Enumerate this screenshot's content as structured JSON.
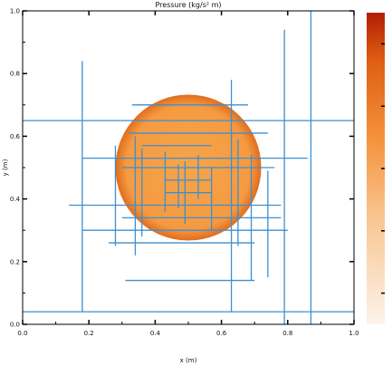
{
  "chart_data": {
    "type": "heatmap",
    "title": "Pressure (kg/s² m)",
    "xlabel": "x (m)",
    "ylabel": "y (m)",
    "xlim": [
      0,
      1
    ],
    "ylim": [
      0,
      1
    ],
    "x_ticks": [
      "0.0",
      "0.2",
      "0.4",
      "0.6",
      "0.8",
      "1.0"
    ],
    "y_ticks": [
      "0.0",
      "0.2",
      "0.4",
      "0.6",
      "0.8",
      "1.0"
    ],
    "circle": {
      "center": [
        0.5,
        0.5
      ],
      "radius": 0.22
    },
    "colormap": {
      "low": "#fdf3ea",
      "mid": "#f5913a",
      "high": "#b01e04",
      "inside_center": "#f5a54a",
      "inside_edge": "#e06d1e"
    },
    "mesh_color": "#3d8fd1",
    "mesh_lines": {
      "vertical": [
        {
          "x": 0.18,
          "y": [
            0.04,
            0.84
          ]
        },
        {
          "x": 0.28,
          "y": [
            0.25,
            0.57
          ]
        },
        {
          "x": 0.34,
          "y": [
            0.22,
            0.6
          ]
        },
        {
          "x": 0.36,
          "y": [
            0.28,
            0.56
          ]
        },
        {
          "x": 0.43,
          "y": [
            0.36,
            0.55
          ]
        },
        {
          "x": 0.47,
          "y": [
            0.37,
            0.51
          ]
        },
        {
          "x": 0.49,
          "y": [
            0.32,
            0.52
          ]
        },
        {
          "x": 0.53,
          "y": [
            0.4,
            0.54
          ]
        },
        {
          "x": 0.57,
          "y": [
            0.3,
            0.5
          ]
        },
        {
          "x": 0.63,
          "y": [
            0.04,
            0.78
          ]
        },
        {
          "x": 0.65,
          "y": [
            0.25,
            0.59
          ]
        },
        {
          "x": 0.69,
          "y": [
            0.14,
            0.54
          ]
        },
        {
          "x": 0.74,
          "y": [
            0.15,
            0.49
          ]
        },
        {
          "x": 0.79,
          "y": [
            0.0,
            0.94
          ]
        },
        {
          "x": 0.87,
          "y": [
            0.0,
            1.0
          ]
        }
      ],
      "horizontal": [
        {
          "y": 0.04,
          "x": [
            0.0,
            1.0
          ]
        },
        {
          "y": 0.14,
          "x": [
            0.31,
            0.7
          ]
        },
        {
          "y": 0.26,
          "x": [
            0.26,
            0.7
          ]
        },
        {
          "y": 0.3,
          "x": [
            0.18,
            0.8
          ]
        },
        {
          "y": 0.34,
          "x": [
            0.3,
            0.78
          ]
        },
        {
          "y": 0.38,
          "x": [
            0.14,
            0.78
          ]
        },
        {
          "y": 0.42,
          "x": [
            0.43,
            0.57
          ]
        },
        {
          "y": 0.46,
          "x": [
            0.43,
            0.57
          ]
        },
        {
          "y": 0.5,
          "x": [
            0.3,
            0.76
          ]
        },
        {
          "y": 0.53,
          "x": [
            0.18,
            0.86
          ]
        },
        {
          "y": 0.57,
          "x": [
            0.36,
            0.57
          ]
        },
        {
          "y": 0.61,
          "x": [
            0.32,
            0.74
          ]
        },
        {
          "y": 0.65,
          "x": [
            0.0,
            1.0
          ]
        },
        {
          "y": 0.7,
          "x": [
            0.33,
            0.68
          ]
        }
      ]
    },
    "colorbar": {
      "tick_labels": [
        "",
        "",
        "",
        "",
        ""
      ]
    }
  }
}
